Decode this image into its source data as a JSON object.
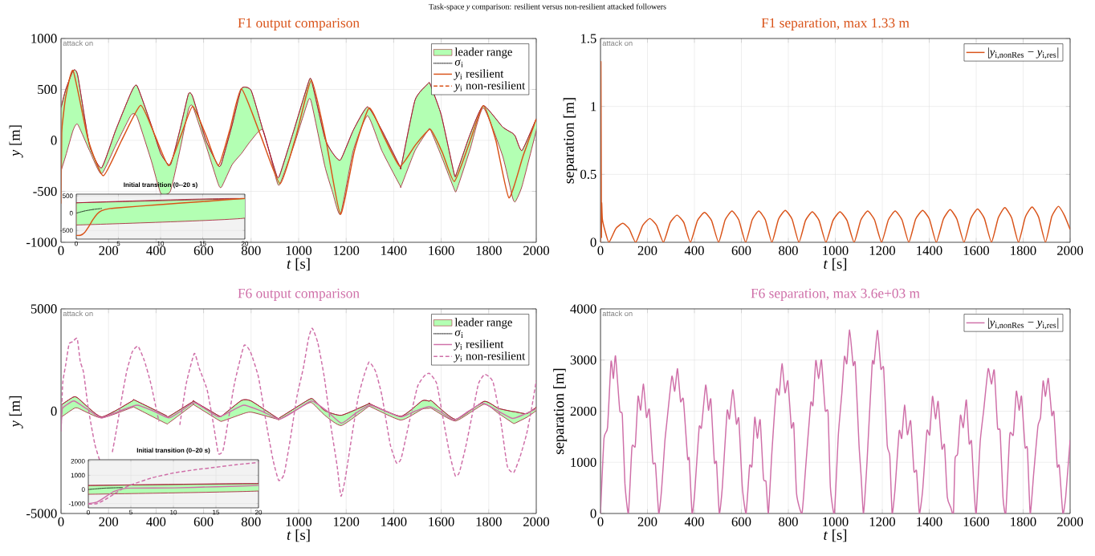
{
  "chart_data": [
    {
      "type": "line",
      "title": "F1 output comparison",
      "xlabel": "*t* [s]",
      "ylabel": "*y* [m]",
      "xlim": [
        0,
        2000
      ],
      "ylim": [
        -1000,
        1000
      ],
      "xticks": [
        0,
        200,
        400,
        600,
        800,
        1000,
        1200,
        1400,
        1600,
        1800,
        2000
      ],
      "yticks": [
        -1000,
        -500,
        0,
        500,
        1000
      ],
      "grid": true,
      "legend": "top right",
      "annotations": [
        "Task-space *y* comparison: resilient versus non-resilient attacked followers"
      ],
      "ref_lines": [
        {
          "axis": "x",
          "value": 0,
          "label": "attack on",
          "color": "#808080"
        }
      ],
      "series": [
        {
          "name": "leader range",
          "type": "line",
          "color": "#a2142f",
          "upper": [
            319,
            500,
            685,
            640,
            -50,
            -270,
            100,
            470,
            536,
            150,
            -130,
            -240,
            100,
            453,
            430,
            0,
            -248,
            -220,
            150,
            508,
            490,
            100,
            -347,
            -330,
            100,
            560,
            589,
            25,
            -120,
            -192,
            100,
            329,
            100,
            -254,
            -250,
            397,
            558,
            550,
            250,
            -332,
            -320,
            50,
            341,
            133,
            71,
            40,
            -99,
            211
          ],
          "x": [
            0,
            20,
            51,
            70,
            120,
            170,
            230,
            295,
            320,
            380,
            420,
            460,
            500,
            536,
            554,
            610,
            662,
            676,
            720,
            759,
            800,
            850,
            908,
            922,
            980,
            1040,
            1054,
            1110,
            1142,
            1176,
            1230,
            1290,
            1350,
            1426,
            1432,
            1490,
            1545,
            1554,
            1600,
            1655,
            1665,
            1720,
            1777,
            1858,
            1900,
            1912,
            1940,
            2000
          ],
          "values": [
            319,
            500,
            685,
            640,
            -50,
            -270,
            100,
            470,
            536,
            150,
            -130,
            -240,
            100,
            453,
            430,
            0,
            -248,
            -220,
            150,
            508,
            490,
            100,
            -347,
            -330,
            100,
            560,
            589,
            25,
            -120,
            -192,
            100,
            329,
            100,
            -254,
            -250,
            397,
            558,
            550,
            250,
            -332,
            -320,
            50,
            341,
            133,
            71,
            40,
            -99,
            211
          ],
          "lower": [
            -300,
            -150,
            100,
            158,
            -100,
            -330,
            -50,
            248,
            230,
            -200,
            -520,
            -500,
            -100,
            300,
            335,
            -50,
            -430,
            -456,
            -239,
            -130,
            0,
            100,
            -400,
            -425,
            -50,
            388,
            370,
            -250,
            -502,
            -725,
            -100,
            242,
            -100,
            -440,
            -446,
            -100,
            100,
            108,
            -150,
            -480,
            -487,
            -100,
            320,
            -150,
            -560,
            -601,
            -450,
            100
          ]
        },
        {
          "name": "*σ*$_{i}$",
          "color": "#000000",
          "line_style": "dotted"
        },
        {
          "name": "*y*$_{i}$ resilient",
          "color": "#d95319",
          "line_style": "solid",
          "x": [
            0,
            3,
            10,
            20,
            51,
            115,
            178,
            255,
            335,
            395,
            453,
            505,
            554,
            610,
            662,
            710,
            759,
            840,
            922,
            990,
            1054,
            1115,
            1176,
            1235,
            1297,
            1360,
            1426,
            1490,
            1554,
            1605,
            1655,
            1715,
            1777,
            1830,
            1885,
            1945,
            2000
          ],
          "values": [
            -620,
            70,
            250,
            430,
            685,
            0,
            -347,
            0,
            344,
            50,
            -248,
            50,
            335,
            50,
            -248,
            100,
            508,
            50,
            -425,
            50,
            589,
            0,
            -725,
            -100,
            319,
            30,
            -254,
            -50,
            108,
            -120,
            -403,
            -50,
            341,
            0,
            -564,
            -150,
            211
          ]
        },
        {
          "name": "*y*$_{i}$ non-resilient",
          "color": "#d95319",
          "line_style": "dashed"
        }
      ]
    },
    {
      "type": "line",
      "title": "Initial transition (0--20 s)",
      "xlim": [
        0,
        20
      ],
      "ylim": [
        -750,
        550
      ],
      "xticks": [
        0,
        5,
        10,
        15,
        20
      ],
      "yticks": [
        -500,
        0,
        500
      ],
      "grid": true,
      "series": [
        {
          "type": "line",
          "color": "#a2142f",
          "x": [
            0,
            20
          ],
          "values": [
            300,
            420
          ],
          "upper": [
            300,
            420
          ],
          "lower": [
            -343,
            -143
          ]
        },
        {
          "color": "#000000",
          "line_style": "dotted",
          "x": [
            0,
            1,
            2,
            3
          ],
          "values": [
            0,
            64,
            107,
            135
          ]
        },
        {
          "color": "#d95319",
          "line_style": "solid",
          "x": [
            0,
            0.5,
            1,
            1.5,
            2,
            2.5,
            3,
            4,
            5,
            10,
            15,
            20
          ],
          "values": [
            -643,
            -640,
            -557,
            -380,
            -180,
            -20,
            70,
            135,
            157,
            250,
            335,
            430
          ]
        }
      ]
    },
    {
      "type": "line",
      "title": "F1 separation, max 1.33 m",
      "xlabel": "*t* [s]",
      "ylabel": "separation [m]",
      "xlim": [
        0,
        2000
      ],
      "ylim": [
        0,
        1.5
      ],
      "xticks": [
        0,
        200,
        400,
        600,
        800,
        1000,
        1200,
        1400,
        1600,
        1800,
        2000
      ],
      "yticks": [
        0,
        0.5,
        1,
        1.5
      ],
      "grid": true,
      "legend": "top right",
      "ref_lines": [
        {
          "axis": "x",
          "value": 0,
          "label": "attack on",
          "color": "#808080"
        }
      ],
      "series": [
        {
          "name": "|*y*$_{i,nonRes}$ − *y*$_{i,res}$|",
          "color": "#d95319",
          "line_style": "solid",
          "x": [
            0,
            2,
            4,
            5,
            8,
            20,
            36,
            65,
            95,
            122,
            150,
            180,
            210,
            239,
            268,
            297,
            326,
            355,
            383,
            413,
            443,
            473,
            503,
            531,
            560,
            589,
            618,
            646,
            674,
            702,
            730,
            758,
            787,
            816,
            845,
            873,
            902,
            931,
            960,
            990,
            1020,
            1050,
            1080,
            1109,
            1138,
            1167,
            1197,
            1226,
            1255,
            1284,
            1313,
            1342,
            1372,
            1401,
            1430,
            1460,
            1489,
            1518,
            1548,
            1577,
            1606,
            1635,
            1665,
            1694,
            1722,
            1751,
            1780,
            1809,
            1838,
            1866,
            1895,
            1922,
            1950,
            1975,
            2000
          ],
          "values": [
            0,
            1.33,
            0.05,
            0.29,
            0.17,
            0.08,
            0,
            0.1,
            0.14,
            0.1,
            0,
            0.125,
            0.175,
            0.125,
            0,
            0.145,
            0.2,
            0.145,
            0,
            0.16,
            0.22,
            0.16,
            0,
            0.165,
            0.23,
            0.165,
            0,
            0.165,
            0.23,
            0.165,
            0,
            0.17,
            0.235,
            0.17,
            0,
            0.16,
            0.225,
            0.16,
            0,
            0.16,
            0.225,
            0.16,
            0,
            0.165,
            0.23,
            0.165,
            0,
            0.165,
            0.23,
            0.165,
            0,
            0.17,
            0.235,
            0.17,
            0,
            0.17,
            0.24,
            0.17,
            0,
            0.175,
            0.245,
            0.175,
            0,
            0.18,
            0.255,
            0.18,
            0,
            0.185,
            0.26,
            0.185,
            0,
            0.19,
            0.265,
            0.2,
            0.095
          ]
        }
      ]
    },
    {
      "type": "line",
      "title": "F6 output comparison",
      "xlabel": "*t* [s]",
      "ylabel": "*y* [m]",
      "xlim": [
        0,
        2000
      ],
      "ylim": [
        -5000,
        5000
      ],
      "xticks": [
        0,
        200,
        400,
        600,
        800,
        1000,
        1200,
        1400,
        1600,
        1800,
        2000
      ],
      "yticks": [
        -5000,
        0,
        5000
      ],
      "grid": true,
      "legend": "top right",
      "ref_lines": [
        {
          "axis": "x",
          "value": 0,
          "label": "attack on",
          "color": "#808080"
        }
      ],
      "series": [
        {
          "name": "leader range",
          "type": "line",
          "color": "#a2142f",
          "upper": [
            300,
            680,
            650,
            -280,
            500,
            540,
            -200,
            -250,
            470,
            480,
            -230,
            -200,
            530,
            500,
            -330,
            -320,
            550,
            590,
            30,
            -200,
            360,
            355,
            -250,
            510,
            490,
            500,
            -400,
            480,
            140,
            -15,
            -30,
            -120,
            190
          ],
          "x": [
            0,
            50,
            70,
            170,
            300,
            310,
            440,
            455,
            555,
            560,
            665,
            680,
            760,
            800,
            910,
            920,
            1040,
            1060,
            1110,
            1180,
            1295,
            1300,
            1430,
            1520,
            1550,
            1560,
            1660,
            1780,
            1840,
            1900,
            1910,
            1960,
            2000
          ],
          "values": [
            300,
            680,
            650,
            -280,
            500,
            540,
            -200,
            -250,
            470,
            480,
            -230,
            -200,
            530,
            500,
            -330,
            -320,
            550,
            590,
            30,
            -200,
            360,
            355,
            -250,
            510,
            490,
            500,
            -400,
            480,
            140,
            -15,
            -30,
            -120,
            190
          ],
          "lower": [
            -300,
            100,
            155,
            -330,
            185,
            180,
            -590,
            -560,
            310,
            305,
            -450,
            -480,
            -150,
            -45,
            -390,
            -400,
            390,
            370,
            -200,
            -700,
            230,
            230,
            -435,
            100,
            140,
            130,
            -480,
            340,
            -100,
            -570,
            -590,
            -300,
            30
          ]
        },
        {
          "name": "*σ*$_{i}$",
          "color": "#000000",
          "line_style": "dotted"
        },
        {
          "name": "*y*$_{i}$ resilient",
          "color": "#cf6fa8",
          "line_style": "solid",
          "x": [
            0,
            5,
            20,
            55,
            110,
            170,
            245,
            320,
            390,
            455,
            510,
            560,
            615,
            665,
            715,
            770,
            845,
            920,
            990,
            1055,
            1120,
            1180,
            1240,
            1300,
            1365,
            1430,
            1490,
            1550,
            1600,
            1655,
            1715,
            1775,
            1840,
            1900,
            1950,
            2000
          ],
          "values": [
            -1000,
            95,
            280,
            500,
            100,
            -325,
            0,
            295,
            0,
            -325,
            50,
            420,
            50,
            -280,
            0,
            295,
            0,
            -390,
            50,
            500,
            0,
            -590,
            -100,
            295,
            0,
            -280,
            0,
            230,
            -50,
            -435,
            0,
            390,
            0,
            -355,
            -150,
            110
          ]
        },
        {
          "name": "*y*$_{i}$ non-resilient",
          "color": "#cf6fa8",
          "line_style": "dashed",
          "x": [
            0,
            7,
            20,
            34,
            50,
            68,
            81,
            95,
            115,
            142,
            162,
            185,
            216,
            230,
            257,
            277,
            300,
            324,
            351,
            378,
            412,
            446,
            470,
            500,
            527,
            561,
            581,
            615,
            642,
            662,
            682,
            703,
            730,
            770,
            797,
            831,
            865,
            892,
            916,
            939,
            966,
            993,
            1020,
            1041,
            1057,
            1081,
            1108,
            1135,
            1162,
            1178,
            1196,
            1223,
            1250,
            1277,
            1297,
            1324,
            1351,
            1385,
            1412,
            1432,
            1466,
            1500,
            1527,
            1550,
            1581,
            1608,
            1635,
            1659,
            1676,
            1703,
            1730,
            1757,
            1784,
            1818,
            1851,
            1878,
            1905,
            1932,
            1959,
            1980,
            2000
          ],
          "values": [
            -980,
            1350,
            2280,
            3290,
            3400,
            3550,
            2430,
            1890,
            110,
            -1600,
            -2370,
            null,
            -2000,
            -1130,
            730,
            1970,
            2900,
            3180,
            2460,
            1350,
            -510,
            null,
            null,
            -670,
            1350,
            2820,
            2120,
            1040,
            -670,
            -2060,
            -1900,
            -510,
            1350,
            3200,
            2900,
            1660,
            -670,
            -2370,
            -3380,
            -3070,
            -1290,
            730,
            2120,
            3520,
            4060,
            3330,
            1660,
            -670,
            -2680,
            -4150,
            -3300,
            -1290,
            650,
            1810,
            2400,
            1940,
            730,
            -1600,
            -2530,
            -2290,
            -510,
            1190,
            1700,
            1850,
            1350,
            -360,
            -2060,
            -3150,
            -3000,
            -1750,
            -200,
            1350,
            1800,
            1430,
            -510,
            -2680,
            -3000,
            -2220,
            -1130,
            110,
            1500
          ]
        }
      ]
    },
    {
      "type": "line",
      "title": "Initial transition (0–20 s)",
      "xlim": [
        0,
        20
      ],
      "ylim": [
        -1300,
        2100
      ],
      "xticks": [
        0,
        5,
        10,
        15,
        20
      ],
      "yticks": [
        -1000,
        0,
        1000,
        2000
      ],
      "grid": true,
      "series": [
        {
          "type": "line",
          "color": "#a2142f",
          "x": [
            0,
            20
          ],
          "values": [
            280,
            410
          ],
          "upper": [
            280,
            410
          ],
          "lower": [
            -340,
            -110
          ]
        },
        {
          "color": "#000000",
          "line_style": "dotted",
          "x": [
            0,
            2,
            4
          ],
          "values": [
            0,
            95,
            130
          ]
        },
        {
          "color": "#cf6fa8",
          "line_style": "solid",
          "x": [
            0,
            1,
            2,
            3,
            4,
            5,
            10,
            15,
            20
          ],
          "values": [
            -1000,
            -900,
            -525,
            -150,
            40,
            95,
            110,
            190,
            280
          ]
        },
        {
          "color": "#cf6fa8",
          "line_style": "dashed",
          "x": [
            0,
            1,
            2,
            3,
            4,
            5,
            7.5,
            10,
            12.5,
            15,
            17.5,
            20
          ],
          "values": [
            -1030,
            -1000,
            -710,
            -340,
            40,
            320,
            825,
            1160,
            1390,
            1570,
            1760,
            1910
          ]
        }
      ]
    },
    {
      "type": "line",
      "title": "F6 separation, max 3.6e+03 m",
      "xlabel": "*t* [s]",
      "ylabel": "separation [m]",
      "xlim": [
        0,
        2000
      ],
      "ylim": [
        0,
        4000
      ],
      "xticks": [
        0,
        200,
        400,
        600,
        800,
        1000,
        1200,
        1400,
        1600,
        1800,
        2000
      ],
      "yticks": [
        0,
        1000,
        2000,
        3000,
        4000
      ],
      "grid": true,
      "legend": "top right",
      "ref_lines": [
        {
          "axis": "x",
          "value": 0,
          "label": "attack on",
          "color": "#808080"
        }
      ],
      "series": [
        {
          "name": "|*y*$_{i,nonRes}$ − *y*$_{i,res}$|",
          "color": "#cf6fa8",
          "line_style": "solid",
          "x": [
            0,
            15,
            30,
            45,
            55,
            64,
            82,
            93,
            104,
            119,
            134,
            148,
            160,
            171,
            183,
            196,
            208,
            223,
            234,
            248,
            260,
            274,
            282,
            304,
            316,
            328,
            341,
            353,
            371,
            378,
            390,
            401,
            420,
            430,
            448,
            460,
            470,
            485,
            494,
            506,
            519,
            539,
            549,
            564,
            579,
            589,
            604,
            620,
            635,
            645,
            657,
            668,
            680,
            694,
            705,
            715,
            730,
            749,
            761,
            773,
            786,
            798,
            813,
            823,
            835,
            858,
            872,
            895,
            905,
            917,
            929,
            941,
            957,
            969,
            979,
            996,
            1013,
            1028,
            1039,
            1049,
            1061,
            1076,
            1085,
            1101,
            1110,
            1120,
            1135,
            1157,
            1165,
            1180,
            1194,
            1206,
            1221,
            1232,
            1242,
            1254,
            1272,
            1283,
            1295,
            1307,
            1321,
            1335,
            1346,
            1358,
            1372,
            1390,
            1402,
            1414,
            1427,
            1438,
            1454,
            1465,
            1477,
            1492,
            1503,
            1510,
            1521,
            1533,
            1545,
            1558,
            1570,
            1580,
            1591,
            1600,
            1617,
            1632,
            1651,
            1665,
            1677,
            1691,
            1702,
            1714,
            1726,
            1743,
            1758,
            1771,
            1783,
            1793,
            1808,
            1818,
            1830,
            1845,
            1863,
            1874,
            1885,
            1895,
            1907,
            1922,
            1931,
            1945,
            1954,
            1969,
            1981,
            2000
          ],
          "values": [
            0,
            1470,
            1680,
            2970,
            2640,
            3080,
            2020,
            1920,
            590,
            0,
            1300,
            1320,
            2290,
            2020,
            2530,
            1880,
            2030,
            1000,
            960,
            0,
            455,
            1400,
            1760,
            2680,
            2390,
            2830,
            2190,
            2230,
            1080,
            1070,
            0,
            390,
            1680,
            1680,
            2510,
            2020,
            2230,
            1010,
            1000,
            0,
            520,
            2000,
            1850,
            2420,
            1750,
            1850,
            520,
            0,
            930,
            930,
            1880,
            1470,
            1830,
            690,
            620,
            0,
            1200,
            2420,
            2320,
            2930,
            2360,
            2590,
            1680,
            1750,
            390,
            0,
            790,
            2150,
            2120,
            2990,
            2630,
            3000,
            2020,
            1980,
            520,
            0,
            1540,
            2360,
            3070,
            2930,
            3590,
            2900,
            2930,
            1340,
            730,
            0,
            1000,
            2930,
            2930,
            3580,
            2830,
            2830,
            1340,
            1130,
            0,
            455,
            1610,
            1470,
            2120,
            1540,
            1810,
            830,
            830,
            0,
            455,
            1610,
            1540,
            2290,
            1850,
            2190,
            1270,
            1340,
            320,
            115,
            0,
            1070,
            1170,
            1920,
            1680,
            2220,
            1370,
            1410,
            455,
            0,
            1400,
            2020,
            2830,
            2530,
            2800,
            1680,
            1610,
            320,
            0,
            1540,
            1540,
            2390,
            2020,
            2290,
            1300,
            1270,
            0,
            790,
            1710,
            1880,
            2590,
            2290,
            2640,
            1920,
            1980,
            930,
            930,
            0,
            320,
            1440
          ]
        }
      ]
    }
  ]
}
